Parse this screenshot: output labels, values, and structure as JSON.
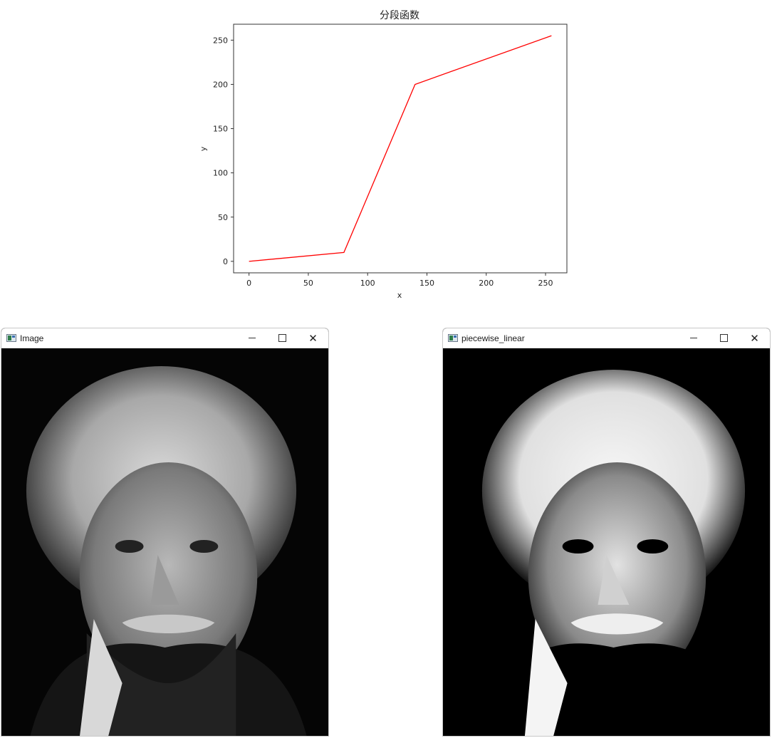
{
  "chart_data": {
    "type": "line",
    "title": "分段函数",
    "xlabel": "x",
    "ylabel": "y",
    "xlim": [
      -13,
      268
    ],
    "ylim": [
      -13,
      268
    ],
    "xticks": [
      0,
      50,
      100,
      150,
      200,
      250
    ],
    "yticks": [
      0,
      50,
      100,
      150,
      200,
      250
    ],
    "series": [
      {
        "x": [
          0,
          80,
          140,
          255
        ],
        "y": [
          0,
          10,
          200,
          255
        ],
        "color": "#ff0000"
      }
    ],
    "grid": false
  },
  "windows": {
    "left": {
      "title": "Image",
      "icon": "app-icon",
      "controls": {
        "minimize": "—",
        "maximize": "☐",
        "close": "✕"
      }
    },
    "right": {
      "title": "piecewise_linear",
      "icon": "app-icon",
      "controls": {
        "minimize": "—",
        "maximize": "☐",
        "close": "✕"
      }
    }
  }
}
